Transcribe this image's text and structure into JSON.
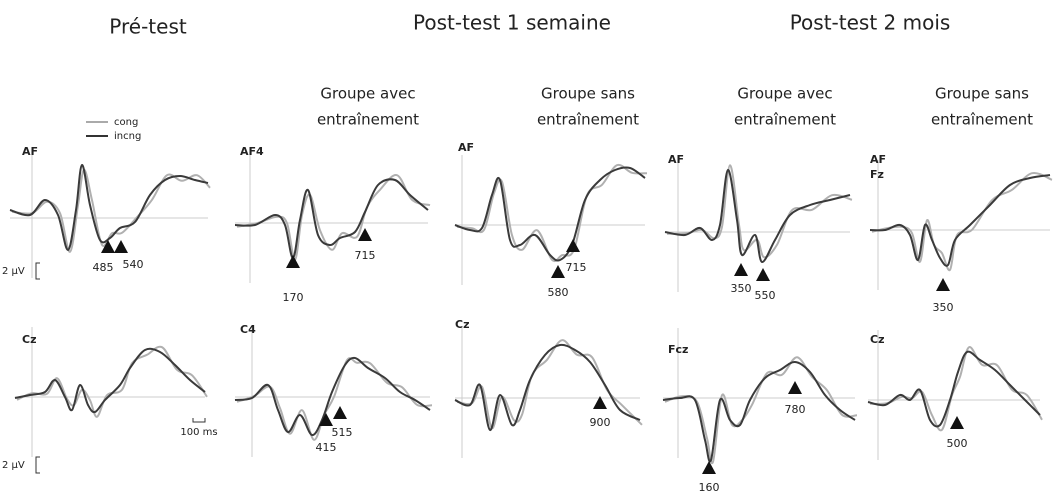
{
  "headings": [
    "Pré-test",
    "Post-test 1 semaine",
    "Post-test 2 mois"
  ],
  "group_labels": [
    [
      "Groupe avec",
      "entraînement"
    ],
    [
      "Groupe sans",
      "entraînement"
    ],
    [
      "Groupe avec",
      "entraînement"
    ],
    [
      "Groupe sans",
      "entraînement"
    ]
  ],
  "legend": [
    "cong",
    "incng"
  ],
  "scale": {
    "amplitude": "2 µV",
    "time": "100 ms"
  },
  "panels": [
    {
      "electrodes": [
        "AF"
      ],
      "markers": [
        485,
        540
      ]
    },
    {
      "electrodes": [
        "AF4"
      ],
      "markers": [
        170,
        715
      ]
    },
    {
      "electrodes": [
        "AF"
      ],
      "markers": [
        580,
        715
      ]
    },
    {
      "electrodes": [
        "AF"
      ],
      "markers": [
        350,
        550
      ]
    },
    {
      "electrodes": [
        "AF",
        "Fz"
      ],
      "markers": [
        350
      ]
    },
    {
      "electrodes": [
        "Cz"
      ],
      "markers": []
    },
    {
      "electrodes": [
        "C4"
      ],
      "markers": [
        515,
        415
      ]
    },
    {
      "electrodes": [
        "Cz"
      ],
      "markers": [
        900
      ]
    },
    {
      "electrodes": [
        "Fcz"
      ],
      "markers": [
        160,
        780
      ]
    },
    {
      "electrodes": [
        "Cz"
      ],
      "markers": [
        500
      ]
    }
  ]
}
